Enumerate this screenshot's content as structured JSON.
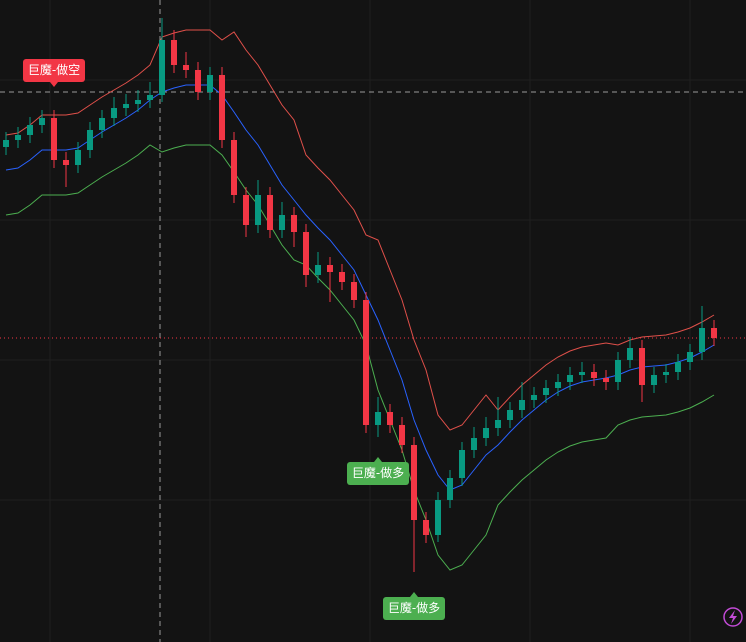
{
  "chart_data": {
    "type": "candlestick",
    "ylim": [
      0,
      642
    ],
    "up_color": "#089981",
    "down_color": "#f23645",
    "open": [
      495,
      502,
      507,
      517,
      524,
      482,
      477,
      492,
      512,
      524,
      534,
      538,
      542,
      547,
      602,
      577,
      572,
      550,
      567,
      502,
      447,
      417,
      447,
      412,
      427,
      410,
      367,
      377,
      370,
      360,
      342,
      217,
      230,
      217,
      197,
      122,
      107,
      142,
      164,
      192,
      204,
      214,
      222,
      232,
      242,
      247,
      254,
      260,
      267,
      270,
      264,
      260,
      282,
      294,
      257,
      267,
      270,
      280,
      290,
      314
    ],
    "high": [
      510,
      515,
      525,
      532,
      532,
      490,
      500,
      520,
      532,
      545,
      548,
      552,
      560,
      624,
      612,
      590,
      580,
      575,
      575,
      510,
      455,
      462,
      455,
      440,
      435,
      418,
      390,
      385,
      378,
      368,
      350,
      245,
      238,
      225,
      205,
      130,
      150,
      172,
      200,
      215,
      225,
      245,
      240,
      260,
      255,
      262,
      268,
      275,
      280,
      278,
      272,
      290,
      305,
      302,
      275,
      278,
      288,
      298,
      336,
      322
    ],
    "low": [
      487,
      494,
      499,
      509,
      474,
      455,
      469,
      484,
      504,
      516,
      526,
      530,
      534,
      540,
      569,
      564,
      542,
      542,
      494,
      439,
      405,
      409,
      404,
      404,
      395,
      355,
      359,
      340,
      352,
      334,
      209,
      205,
      209,
      189,
      70,
      99,
      100,
      134,
      156,
      184,
      196,
      206,
      214,
      224,
      234,
      239,
      246,
      252,
      259,
      256,
      252,
      252,
      274,
      240,
      249,
      259,
      262,
      272,
      282,
      296
    ],
    "close": [
      502,
      507,
      517,
      524,
      482,
      477,
      492,
      512,
      524,
      534,
      538,
      542,
      547,
      602,
      577,
      572,
      550,
      567,
      502,
      447,
      417,
      447,
      412,
      427,
      410,
      367,
      377,
      370,
      360,
      342,
      217,
      230,
      217,
      197,
      122,
      107,
      142,
      164,
      192,
      204,
      214,
      222,
      232,
      242,
      247,
      254,
      260,
      267,
      270,
      264,
      260,
      282,
      294,
      257,
      267,
      270,
      280,
      290,
      314,
      304
    ],
    "series": [
      {
        "color": "#e0504a",
        "values": [
          507,
          509,
          517,
          527,
          527,
          527,
          529,
          537,
          545,
          552,
          559,
          567,
          577,
          605,
          609,
          612,
          612,
          612,
          602,
          610,
          592,
          577,
          557,
          537,
          522,
          487,
          474,
          462,
          447,
          432,
          407,
          402,
          372,
          342,
          302,
          272,
          227,
          212,
          217,
          232,
          247,
          232,
          245,
          257,
          267,
          277,
          285,
          291,
          295,
          297,
          299,
          297,
          302,
          305,
          306,
          307,
          310,
          314,
          320,
          327
        ]
      },
      {
        "color": "#2962ff",
        "values": [
          472,
          474,
          482,
          492,
          492,
          492,
          494,
          502,
          510,
          517,
          524,
          532,
          542,
          550,
          554,
          557,
          557,
          557,
          547,
          530,
          512,
          497,
          477,
          457,
          442,
          427,
          414,
          402,
          387,
          372,
          347,
          322,
          292,
          262,
          222,
          192,
          167,
          152,
          157,
          172,
          187,
          197,
          210,
          222,
          232,
          242,
          250,
          256,
          260,
          262,
          264,
          267,
          272,
          275,
          276,
          277,
          280,
          284,
          290,
          297
        ]
      },
      {
        "color": "#4caf50",
        "values": [
          427,
          429,
          437,
          447,
          447,
          447,
          449,
          457,
          465,
          472,
          479,
          487,
          497,
          490,
          494,
          497,
          497,
          497,
          487,
          470,
          452,
          437,
          417,
          397,
          382,
          377,
          364,
          352,
          337,
          322,
          297,
          252,
          222,
          192,
          152,
          122,
          87,
          72,
          77,
          92,
          107,
          137,
          150,
          162,
          172,
          182,
          190,
          196,
          200,
          202,
          204,
          217,
          222,
          225,
          226,
          227,
          230,
          234,
          240,
          247
        ]
      }
    ],
    "annotations": [
      {
        "text": "巨魔-做空",
        "index": 4,
        "side": "short",
        "color": "#f23645"
      },
      {
        "text": "巨魔-做多",
        "index": 31,
        "side": "long",
        "color": "#4caf50"
      },
      {
        "text": "巨魔-做多",
        "index": 34,
        "side": "long",
        "color": "#4caf50"
      }
    ]
  }
}
